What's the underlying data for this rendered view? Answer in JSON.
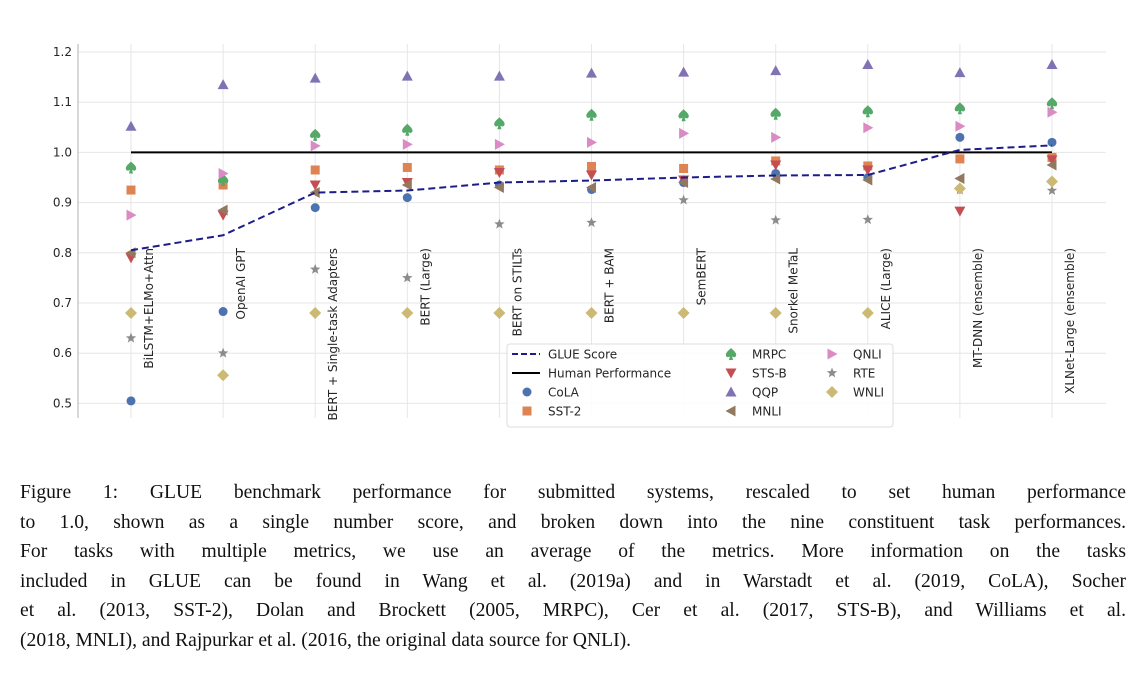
{
  "chart_data": {
    "type": "scatter",
    "title": "",
    "xlabel": "",
    "ylabel": "",
    "ylim": [
      0.47,
      1.22
    ],
    "yticks": [
      "0.5",
      "0.6",
      "0.7",
      "0.8",
      "0.9",
      "1.0",
      "1.1",
      "1.2"
    ],
    "grid": true,
    "legend_position": "bottom-center",
    "categories": [
      "BiLSTM+ELMo+Attn",
      "OpenAI GPT",
      "BERT + Single-task Adapters",
      "BERT (Large)",
      "BERT on STILTs",
      "BERT + BAM",
      "SemBERT",
      "Snorkel MeTaL",
      "ALICE (Large)",
      "MT-DNN (ensemble)",
      "XLNet-Large (ensemble)"
    ],
    "lines": [
      {
        "name": "GLUE Score",
        "style": "dashed",
        "color": "#1c1c8a",
        "values": [
          0.805,
          0.835,
          0.92,
          0.924,
          0.94,
          0.944,
          0.95,
          0.954,
          0.955,
          1.005,
          1.014
        ]
      },
      {
        "name": "Human Performance",
        "style": "solid",
        "color": "#000000",
        "values": [
          1.0,
          1.0,
          1.0,
          1.0,
          1.0,
          1.0,
          1.0,
          1.0,
          1.0,
          1.0,
          1.0
        ]
      }
    ],
    "series": [
      {
        "name": "CoLA",
        "marker": "circle",
        "color": "#4c72b0",
        "values": [
          0.505,
          0.683,
          0.89,
          0.91,
          0.935,
          0.926,
          0.94,
          0.958,
          0.95,
          1.03,
          1.02
        ]
      },
      {
        "name": "SST-2",
        "marker": "square",
        "color": "#dd8452",
        "values": [
          0.925,
          0.935,
          0.965,
          0.97,
          0.965,
          0.972,
          0.968,
          0.983,
          0.973,
          0.987,
          0.99
        ]
      },
      {
        "name": "MRPC",
        "marker": "spade",
        "color": "#55a868",
        "values": [
          0.97,
          0.945,
          1.035,
          1.045,
          1.058,
          1.075,
          1.074,
          1.077,
          1.082,
          1.088,
          1.098
        ]
      },
      {
        "name": "STS-B",
        "marker": "triangle-down",
        "color": "#c44e52",
        "values": [
          0.79,
          0.875,
          0.935,
          0.94,
          0.96,
          0.955,
          0.945,
          0.975,
          0.965,
          0.883,
          0.985
        ]
      },
      {
        "name": "QQP",
        "marker": "triangle-up",
        "color": "#8172b3",
        "values": [
          1.052,
          1.135,
          1.148,
          1.152,
          1.152,
          1.158,
          1.16,
          1.163,
          1.175,
          1.159,
          1.175
        ]
      },
      {
        "name": "MNLI",
        "marker": "triangle-left",
        "color": "#937860",
        "values": [
          0.8,
          0.885,
          0.92,
          0.935,
          0.93,
          0.93,
          0.94,
          0.947,
          0.945,
          0.948,
          0.975
        ]
      },
      {
        "name": "QNLI",
        "marker": "triangle-right",
        "color": "#da8bc3",
        "values": [
          0.875,
          0.958,
          1.013,
          1.016,
          1.016,
          1.02,
          1.038,
          1.03,
          1.049,
          1.052,
          1.08
        ]
      },
      {
        "name": "RTE",
        "marker": "star",
        "color": "#8c8c8c",
        "values": [
          0.63,
          0.6,
          0.767,
          0.75,
          0.857,
          0.86,
          0.905,
          0.865,
          0.866,
          0.925,
          0.924
        ]
      },
      {
        "name": "WNLI",
        "marker": "diamond",
        "color": "#ccb974",
        "values": [
          0.68,
          0.556,
          0.68,
          0.68,
          0.68,
          0.68,
          0.68,
          0.68,
          0.68,
          0.928,
          0.942
        ]
      }
    ]
  },
  "caption": [
    "Figure 1: GLUE benchmark performance for submitted systems, rescaled to set human performance",
    "to 1.0, shown as a single number score, and broken down into the nine constituent task performances.",
    "For tasks with multiple metrics, we use an average of the metrics. More information on the tasks",
    "included in GLUE can be found in Wang et al. (2019a) and in Warstadt et al. (2019, CoLA), Socher",
    "et al. (2013, SST-2), Dolan and Brockett (2005, MRPC), Cer et al. (2017, STS-B), and Williams et al.",
    "(2018, MNLI), and Rajpurkar et al. (2016, the original data source for QNLI)."
  ]
}
